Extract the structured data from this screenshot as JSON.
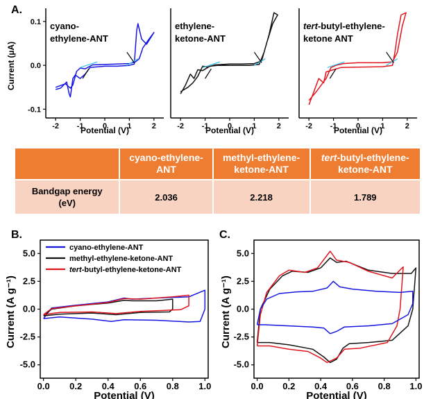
{
  "panel_labels": {
    "a": "A.",
    "b": "B.",
    "c": "C."
  },
  "colors": {
    "blue": "#1515e0",
    "black": "#111111",
    "red": "#e0141c",
    "cyan": "#3bc4ee",
    "orange": "#ee7d31",
    "pink": "#f9d3c2"
  },
  "table": {
    "headers": [
      "",
      "cyano-ethylene-ANT",
      "methyl-ethylene-ketone-ANT",
      "tert-butyl-ethylene-ketone-ANT"
    ],
    "row_label": "Bandgap energy (eV)",
    "values": [
      "2.036",
      "2.218",
      "1.789"
    ]
  },
  "chart_data": [
    {
      "type": "line",
      "panel": "A",
      "annotation": [
        "cyano-",
        "ethylene-ANT"
      ],
      "xlabel": "Potential (V)",
      "ylabel": "Current (µA)",
      "xlim": [
        -2.4,
        2.4
      ],
      "ylim": [
        -0.12,
        0.13
      ],
      "xticks": [
        "-2",
        "-1",
        "0",
        "1",
        "2"
      ],
      "yticks": [
        "0.1",
        "0.0",
        "-0.1"
      ],
      "series": [
        {
          "color": "blue",
          "points": [
            [
              -2.0,
              -0.055
            ],
            [
              -1.8,
              -0.052
            ],
            [
              -1.55,
              -0.038
            ],
            [
              -1.45,
              -0.065
            ],
            [
              -1.4,
              -0.072
            ],
            [
              -1.3,
              -0.03
            ],
            [
              -1.2,
              -0.022
            ],
            [
              -1.0,
              -0.03
            ],
            [
              -0.8,
              -0.02
            ],
            [
              -0.6,
              -0.005
            ],
            [
              0.0,
              -0.002
            ],
            [
              0.5,
              -0.002
            ],
            [
              1.0,
              0.0
            ],
            [
              1.2,
              0.003
            ],
            [
              1.3,
              0.08
            ],
            [
              1.35,
              0.095
            ],
            [
              1.5,
              0.06
            ],
            [
              1.7,
              0.048
            ],
            [
              2.0,
              0.075
            ],
            [
              1.8,
              0.06
            ],
            [
              1.55,
              0.04
            ],
            [
              1.4,
              0.015
            ],
            [
              1.25,
              0.008
            ],
            [
              1.0,
              0.004
            ],
            [
              0.5,
              0.003
            ],
            [
              0.0,
              0.002
            ],
            [
              -0.5,
              0.001
            ],
            [
              -0.8,
              -0.008
            ],
            [
              -1.0,
              -0.006
            ],
            [
              -1.15,
              -0.014
            ],
            [
              -1.3,
              -0.045
            ],
            [
              -1.4,
              -0.052
            ],
            [
              -1.6,
              -0.042
            ],
            [
              -2.0,
              -0.05
            ]
          ]
        }
      ]
    },
    {
      "type": "line",
      "panel": "A",
      "annotation": [
        "ethylene-",
        "ketone-ANT"
      ],
      "xlabel": "Potential (V)",
      "xlim": [
        -2.4,
        2.4
      ],
      "ylim": [
        -0.12,
        0.13
      ],
      "xticks": [
        "-2",
        "-1",
        "0",
        "1",
        "2"
      ],
      "series": [
        {
          "color": "black",
          "points": [
            [
              -2.0,
              -0.065
            ],
            [
              -1.8,
              -0.045
            ],
            [
              -1.6,
              -0.02
            ],
            [
              -1.45,
              -0.03
            ],
            [
              -1.3,
              -0.01
            ],
            [
              -1.1,
              -0.012
            ],
            [
              -0.8,
              -0.002
            ],
            [
              -0.5,
              0.0
            ],
            [
              0.0,
              0.0
            ],
            [
              0.8,
              0.0
            ],
            [
              1.2,
              0.002
            ],
            [
              1.4,
              0.03
            ],
            [
              1.6,
              0.07
            ],
            [
              1.8,
              0.12
            ],
            [
              1.95,
              0.115
            ],
            [
              1.75,
              0.095
            ],
            [
              1.5,
              0.05
            ],
            [
              1.3,
              0.01
            ],
            [
              1.0,
              0.004
            ],
            [
              0.5,
              0.003
            ],
            [
              0.0,
              0.003
            ],
            [
              -0.6,
              0.001
            ],
            [
              -0.9,
              -0.004
            ],
            [
              -1.1,
              -0.002
            ],
            [
              -1.3,
              -0.025
            ],
            [
              -1.5,
              -0.04
            ],
            [
              -1.7,
              -0.05
            ],
            [
              -2.0,
              -0.06
            ]
          ]
        }
      ]
    },
    {
      "type": "line",
      "panel": "A",
      "annotation": [
        "tert-butyl-ethylene-",
        "ketone ANT"
      ],
      "xlabel": "Potential (V)",
      "xlim": [
        -2.4,
        2.4
      ],
      "ylim": [
        -0.12,
        0.13
      ],
      "xticks": [
        "-2",
        "-1",
        "0",
        "1",
        "2"
      ],
      "series": [
        {
          "color": "red",
          "points": [
            [
              -2.0,
              -0.09
            ],
            [
              -1.8,
              -0.06
            ],
            [
              -1.6,
              -0.03
            ],
            [
              -1.4,
              -0.04
            ],
            [
              -1.3,
              -0.015
            ],
            [
              -1.0,
              -0.01
            ],
            [
              -0.7,
              -0.005
            ],
            [
              0.0,
              -0.004
            ],
            [
              1.0,
              -0.003
            ],
            [
              1.4,
              0.0
            ],
            [
              1.5,
              0.03
            ],
            [
              1.6,
              0.07
            ],
            [
              1.75,
              0.115
            ],
            [
              1.95,
              0.12
            ],
            [
              1.8,
              0.09
            ],
            [
              1.6,
              0.03
            ],
            [
              1.4,
              0.008
            ],
            [
              1.0,
              0.006
            ],
            [
              0.0,
              0.006
            ],
            [
              -0.6,
              0.004
            ],
            [
              -0.9,
              0.0
            ],
            [
              -1.1,
              -0.005
            ],
            [
              -1.3,
              -0.03
            ],
            [
              -1.5,
              -0.045
            ],
            [
              -1.7,
              -0.06
            ],
            [
              -2.0,
              -0.08
            ]
          ]
        }
      ]
    },
    {
      "type": "line",
      "panel": "B",
      "xlabel": "Potential (V)",
      "ylabel": "Current (A g⁻¹)",
      "xlim": [
        -0.02,
        1.02
      ],
      "ylim": [
        -6.2,
        6.2
      ],
      "xticks": [
        "0.0",
        "0.2",
        "0.4",
        "0.6",
        "0.8",
        "1.0"
      ],
      "yticks": [
        "5.0",
        "2.5",
        "0.0",
        "-2.5",
        "-5.0"
      ],
      "legend": [
        "cyano-ethylene-ANT",
        "methyl-ethylene-ketone-ANT",
        "tert-butyl-ethylene-ketone-ANT"
      ],
      "series": [
        {
          "name": "cyano-ethylene-ANT",
          "color": "blue",
          "points": [
            [
              0.0,
              -0.85
            ],
            [
              0.1,
              -0.7
            ],
            [
              0.3,
              -0.9
            ],
            [
              0.42,
              -1.1
            ],
            [
              0.5,
              -0.95
            ],
            [
              0.7,
              -1.0
            ],
            [
              0.9,
              -1.15
            ],
            [
              0.97,
              -1.1
            ],
            [
              1.0,
              0.0
            ],
            [
              1.0,
              1.7
            ],
            [
              0.9,
              1.1
            ],
            [
              0.7,
              1.0
            ],
            [
              0.55,
              0.9
            ],
            [
              0.5,
              1.0
            ],
            [
              0.4,
              0.65
            ],
            [
              0.2,
              0.35
            ],
            [
              0.05,
              0.1
            ],
            [
              0.0,
              -0.85
            ]
          ]
        },
        {
          "name": "methyl-ethylene-ketone-ANT",
          "color": "black",
          "points": [
            [
              0.0,
              -0.6
            ],
            [
              0.1,
              -0.45
            ],
            [
              0.3,
              -0.35
            ],
            [
              0.45,
              -0.5
            ],
            [
              0.6,
              -0.3
            ],
            [
              0.78,
              -0.25
            ],
            [
              0.8,
              0.0
            ],
            [
              0.8,
              0.9
            ],
            [
              0.7,
              0.75
            ],
            [
              0.55,
              0.75
            ],
            [
              0.5,
              0.8
            ],
            [
              0.4,
              0.55
            ],
            [
              0.2,
              0.3
            ],
            [
              0.05,
              0.0
            ],
            [
              0.0,
              -0.6
            ]
          ]
        },
        {
          "name": "tert-butyl-ethylene-ketone-ANT",
          "color": "red",
          "points": [
            [
              0.0,
              -0.5
            ],
            [
              0.1,
              -0.3
            ],
            [
              0.3,
              -0.25
            ],
            [
              0.45,
              -0.4
            ],
            [
              0.6,
              -0.2
            ],
            [
              0.85,
              -0.05
            ],
            [
              0.9,
              0.3
            ],
            [
              0.9,
              1.25
            ],
            [
              0.8,
              1.1
            ],
            [
              0.6,
              0.9
            ],
            [
              0.5,
              0.95
            ],
            [
              0.4,
              0.6
            ],
            [
              0.2,
              0.3
            ],
            [
              0.05,
              0.05
            ],
            [
              0.0,
              -0.5
            ]
          ]
        }
      ]
    },
    {
      "type": "line",
      "panel": "C",
      "xlabel": "Potential (V)",
      "ylabel": "Current (A g⁻¹)",
      "xlim": [
        -0.02,
        1.02
      ],
      "ylim": [
        -6.2,
        6.2
      ],
      "xticks": [
        "0.0",
        "0.2",
        "0.4",
        "0.6",
        "0.8",
        "1.0"
      ],
      "yticks": [
        "5.0",
        "2.5",
        "0.0",
        "-2.5",
        "-5.0"
      ],
      "series": [
        {
          "color": "black",
          "points": [
            [
              0.0,
              -3.0
            ],
            [
              0.02,
              0.0
            ],
            [
              0.08,
              1.8
            ],
            [
              0.16,
              3.0
            ],
            [
              0.22,
              3.4
            ],
            [
              0.32,
              3.3
            ],
            [
              0.4,
              3.7
            ],
            [
              0.46,
              4.6
            ],
            [
              0.5,
              4.2
            ],
            [
              0.56,
              4.3
            ],
            [
              0.7,
              3.5
            ],
            [
              0.85,
              3.2
            ],
            [
              0.97,
              3.2
            ],
            [
              1.0,
              3.7
            ],
            [
              0.98,
              0.0
            ],
            [
              0.95,
              -1.5
            ],
            [
              0.85,
              -2.8
            ],
            [
              0.7,
              -3.0
            ],
            [
              0.58,
              -3.1
            ],
            [
              0.54,
              -3.5
            ],
            [
              0.5,
              -4.5
            ],
            [
              0.46,
              -4.8
            ],
            [
              0.42,
              -4.3
            ],
            [
              0.35,
              -3.6
            ],
            [
              0.2,
              -3.2
            ],
            [
              0.08,
              -3.0
            ],
            [
              0.0,
              -3.0
            ]
          ]
        },
        {
          "color": "red",
          "points": [
            [
              0.0,
              -3.3
            ],
            [
              0.02,
              -0.5
            ],
            [
              0.06,
              1.5
            ],
            [
              0.14,
              3.0
            ],
            [
              0.2,
              3.5
            ],
            [
              0.3,
              3.3
            ],
            [
              0.38,
              3.7
            ],
            [
              0.46,
              5.2
            ],
            [
              0.5,
              4.4
            ],
            [
              0.58,
              4.2
            ],
            [
              0.7,
              3.4
            ],
            [
              0.85,
              2.8
            ],
            [
              0.92,
              3.8
            ],
            [
              0.9,
              0.0
            ],
            [
              0.88,
              -1.5
            ],
            [
              0.82,
              -3.0
            ],
            [
              0.65,
              -3.5
            ],
            [
              0.55,
              -3.6
            ],
            [
              0.5,
              -4.4
            ],
            [
              0.44,
              -4.8
            ],
            [
              0.4,
              -4.4
            ],
            [
              0.32,
              -3.8
            ],
            [
              0.2,
              -3.6
            ],
            [
              0.08,
              -3.3
            ],
            [
              0.0,
              -3.3
            ]
          ]
        },
        {
          "color": "blue",
          "points": [
            [
              0.0,
              -1.4
            ],
            [
              0.02,
              0.0
            ],
            [
              0.06,
              0.9
            ],
            [
              0.14,
              1.4
            ],
            [
              0.25,
              1.55
            ],
            [
              0.35,
              1.6
            ],
            [
              0.44,
              1.9
            ],
            [
              0.48,
              2.5
            ],
            [
              0.52,
              2.0
            ],
            [
              0.6,
              1.8
            ],
            [
              0.75,
              1.6
            ],
            [
              0.9,
              1.5
            ],
            [
              0.98,
              1.6
            ],
            [
              0.98,
              0.5
            ],
            [
              0.95,
              -0.5
            ],
            [
              0.85,
              -1.3
            ],
            [
              0.7,
              -1.5
            ],
            [
              0.55,
              -1.6
            ],
            [
              0.5,
              -2.0
            ],
            [
              0.46,
              -2.2
            ],
            [
              0.42,
              -1.7
            ],
            [
              0.35,
              -1.6
            ],
            [
              0.2,
              -1.5
            ],
            [
              0.05,
              -1.4
            ],
            [
              0.0,
              -1.4
            ]
          ]
        }
      ]
    }
  ]
}
